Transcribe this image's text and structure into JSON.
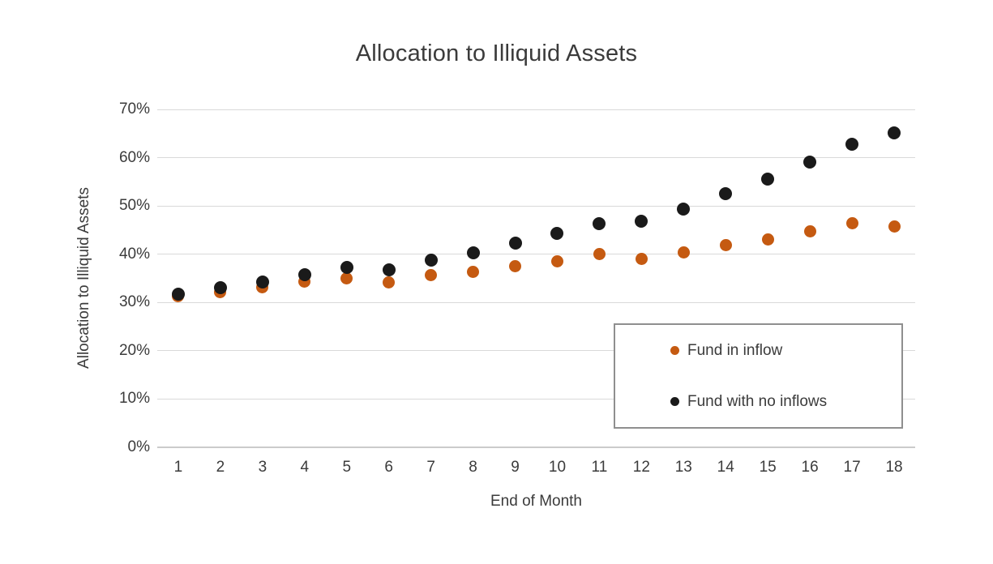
{
  "title": "Allocation to Illiquid Assets",
  "y_axis": {
    "title": "Allocation to Illiquid Assets",
    "tick_labels": [
      "70%",
      "60%",
      "50%",
      "40%",
      "30%",
      "20%",
      "10%",
      "0%"
    ]
  },
  "x_axis": {
    "title": "End of Month",
    "tick_labels": [
      "1",
      "2",
      "3",
      "4",
      "5",
      "6",
      "7",
      "8",
      "9",
      "10",
      "11",
      "12",
      "13",
      "14",
      "15",
      "16",
      "17",
      "18"
    ]
  },
  "legend": {
    "items": [
      {
        "label": "Fund in inflow",
        "color": "#C55A11"
      },
      {
        "label": "Fund with no inflows",
        "color": "#1A1A1A"
      }
    ]
  },
  "chart_data": {
    "type": "scatter",
    "title": "Allocation to Illiquid Assets",
    "xlabel": "End of Month",
    "ylabel": "Allocation to Illiquid Assets",
    "x": [
      1,
      2,
      3,
      4,
      5,
      6,
      7,
      8,
      9,
      10,
      11,
      12,
      13,
      14,
      15,
      16,
      17,
      18
    ],
    "series": [
      {
        "name": "Fund in inflow",
        "color": "#C55A11",
        "values": [
          31.3,
          32.1,
          33.1,
          34.4,
          35.0,
          34.2,
          35.6,
          36.4,
          37.6,
          38.6,
          40.0,
          39.1,
          40.3,
          41.9,
          43.1,
          44.8,
          46.4,
          45.8
        ]
      },
      {
        "name": "Fund with no inflows",
        "color": "#1A1A1A",
        "values": [
          31.8,
          33.1,
          34.3,
          35.8,
          37.3,
          36.8,
          38.7,
          40.3,
          42.3,
          44.4,
          46.3,
          46.8,
          49.4,
          52.5,
          55.6,
          59.1,
          62.8,
          65.2
        ]
      }
    ],
    "ylim": [
      0,
      70
    ],
    "ytick_step": 10,
    "ytick_format": "percent",
    "grid": "horizontal",
    "legend_position": "inside-right",
    "marker": "circle"
  }
}
